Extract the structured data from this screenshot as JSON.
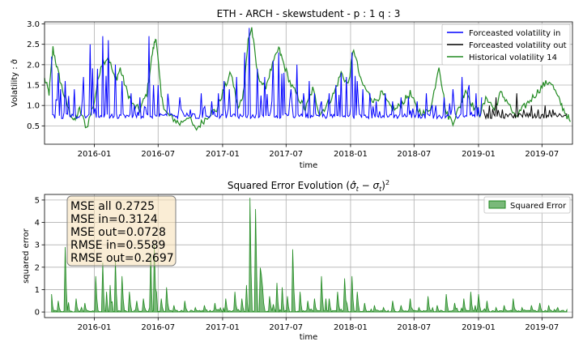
{
  "chart_data": [
    {
      "type": "line",
      "title": "ETH - ARCH - skewstudent - p : 1 q : 3",
      "xlabel": "time",
      "ylabel": "Volatility : σ̂",
      "x_range": [
        "2015-08-12",
        "2019-09-26"
      ],
      "ylim": [
        0.05,
        3.05
      ],
      "x_ticks": [
        "2016-01",
        "2016-07",
        "2017-01",
        "2017-07",
        "2018-01",
        "2018-07",
        "2019-01",
        "2019-07"
      ],
      "y_ticks": [
        "0.5",
        "1.0",
        "1.5",
        "2.0",
        "2.5",
        "3.0"
      ],
      "grid": true,
      "legend_position": "top-right",
      "series": [
        {
          "name": "Forceasted volatility in",
          "color": "#0000ff",
          "baseline": 0.72,
          "x": [
            "2015-09-01",
            "2015-09-20",
            "2015-10-10",
            "2015-11-05",
            "2015-12-01",
            "2015-12-20",
            "2016-01-10",
            "2016-01-25",
            "2016-02-10",
            "2016-03-01",
            "2016-03-20",
            "2016-04-15",
            "2016-05-10",
            "2016-06-05",
            "2016-06-18",
            "2016-07-01",
            "2016-08-01",
            "2016-09-01",
            "2016-10-01",
            "2016-11-01",
            "2016-12-01",
            "2016-12-20",
            "2017-01-05",
            "2017-01-20",
            "2017-02-10",
            "2017-03-05",
            "2017-03-18",
            "2017-04-10",
            "2017-05-01",
            "2017-05-25",
            "2017-06-10",
            "2017-06-25",
            "2017-07-15",
            "2017-08-01",
            "2017-08-20",
            "2017-09-05",
            "2017-09-20",
            "2017-10-10",
            "2017-11-01",
            "2017-11-20",
            "2017-12-05",
            "2017-12-20",
            "2018-01-05",
            "2018-01-20",
            "2018-02-05",
            "2018-02-25",
            "2018-03-15",
            "2018-04-10",
            "2018-05-01",
            "2018-05-25",
            "2018-06-15",
            "2018-07-10",
            "2018-08-05",
            "2018-09-01",
            "2018-09-25",
            "2018-10-20",
            "2018-11-15",
            "2018-12-05",
            "2018-12-25",
            "2019-01-10"
          ],
          "peaks": [
            2.2,
            1.8,
            1.6,
            1.4,
            1.7,
            2.5,
            1.9,
            2.7,
            2.6,
            2.0,
            1.6,
            1.3,
            1.2,
            2.7,
            1.5,
            1.5,
            1.0,
            1.2,
            0.9,
            1.3,
            1.1,
            1.3,
            1.6,
            1.4,
            1.7,
            2.3,
            2.9,
            1.9,
            1.7,
            2.1,
            2.3,
            1.8,
            1.4,
            2.0,
            1.3,
            1.6,
            1.3,
            1.1,
            1.3,
            1.5,
            1.8,
            1.7,
            2.3,
            1.6,
            1.4,
            1.3,
            1.1,
            1.3,
            1.1,
            1.2,
            1.2,
            1.1,
            1.3,
            1.0,
            1.2,
            1.4,
            1.7,
            1.5,
            1.3,
            1.2
          ]
        },
        {
          "name": "Forceasted volatility out",
          "color": "#000000",
          "baseline": 0.72,
          "x": [
            "2019-01-15",
            "2019-02-01",
            "2019-02-20",
            "2019-03-10",
            "2019-04-01",
            "2019-04-20",
            "2019-05-10",
            "2019-06-01",
            "2019-06-20",
            "2019-07-10",
            "2019-08-01",
            "2019-08-20",
            "2019-09-10"
          ],
          "peaks": [
            0.9,
            1.0,
            1.2,
            0.9,
            0.8,
            1.3,
            0.9,
            1.0,
            0.9,
            1.0,
            0.9,
            0.8,
            0.8
          ]
        },
        {
          "name": "Historical volatility 14",
          "color": "#228b22",
          "x": [
            "2015-08-12",
            "2015-08-25",
            "2015-09-05",
            "2015-09-20",
            "2015-10-05",
            "2015-10-20",
            "2015-11-05",
            "2015-11-20",
            "2015-12-10",
            "2016-01-01",
            "2016-01-20",
            "2016-02-10",
            "2016-03-01",
            "2016-03-15",
            "2016-04-01",
            "2016-04-20",
            "2016-05-10",
            "2016-05-30",
            "2016-06-15",
            "2016-06-25",
            "2016-07-10",
            "2016-07-25",
            "2016-08-10",
            "2016-09-01",
            "2016-09-25",
            "2016-10-15",
            "2016-11-05",
            "2016-11-25",
            "2016-12-15",
            "2017-01-05",
            "2017-01-25",
            "2017-02-15",
            "2017-03-01",
            "2017-03-15",
            "2017-03-25",
            "2017-04-10",
            "2017-05-01",
            "2017-05-20",
            "2017-06-10",
            "2017-06-25",
            "2017-07-15",
            "2017-08-05",
            "2017-08-25",
            "2017-09-15",
            "2017-10-05",
            "2017-10-25",
            "2017-11-15",
            "2017-12-05",
            "2017-12-25",
            "2018-01-10",
            "2018-01-30",
            "2018-02-20",
            "2018-03-10",
            "2018-04-01",
            "2018-04-20",
            "2018-05-10",
            "2018-06-01",
            "2018-06-20",
            "2018-07-10",
            "2018-08-01",
            "2018-08-20",
            "2018-09-10",
            "2018-10-01",
            "2018-10-20",
            "2018-11-10",
            "2018-11-25",
            "2018-12-15",
            "2019-01-05",
            "2019-01-25",
            "2019-02-15",
            "2019-03-05",
            "2019-03-25",
            "2019-04-15",
            "2019-05-05",
            "2019-05-25",
            "2019-06-15",
            "2019-07-05",
            "2019-07-25",
            "2019-08-15",
            "2019-09-01",
            "2019-09-20"
          ],
          "values": [
            1.65,
            1.3,
            2.4,
            1.8,
            1.3,
            0.9,
            0.6,
            0.9,
            0.45,
            1.1,
            2.0,
            2.2,
            1.6,
            1.9,
            1.4,
            1.0,
            0.9,
            1.3,
            2.3,
            2.7,
            1.2,
            0.8,
            0.7,
            0.55,
            0.75,
            0.4,
            0.6,
            0.8,
            0.9,
            1.4,
            1.8,
            0.9,
            1.3,
            2.6,
            2.9,
            1.8,
            1.4,
            1.9,
            2.4,
            2.0,
            1.5,
            1.2,
            0.9,
            1.4,
            0.8,
            1.0,
            1.3,
            1.8,
            1.5,
            2.4,
            1.6,
            1.3,
            1.1,
            1.3,
            1.0,
            0.9,
            1.1,
            1.3,
            0.9,
            0.8,
            1.0,
            2.0,
            0.8,
            0.6,
            1.0,
            1.4,
            1.0,
            0.8,
            1.2,
            0.9,
            1.3,
            1.1,
            0.7,
            0.9,
            1.1,
            1.3,
            1.5,
            1.6,
            1.2,
            0.9,
            0.6
          ]
        }
      ]
    },
    {
      "type": "area",
      "title": "Squared Error Evolution (σ̂t − σt)²",
      "xlabel": "time",
      "ylabel": "squared error",
      "x_range": [
        "2015-08-12",
        "2019-09-26"
      ],
      "ylim": [
        -0.25,
        5.25
      ],
      "x_ticks": [
        "2016-01",
        "2016-07",
        "2017-01",
        "2017-07",
        "2018-01",
        "2018-07",
        "2019-01",
        "2019-07"
      ],
      "y_ticks": [
        "0",
        "1",
        "2",
        "3",
        "4",
        "5"
      ],
      "grid": true,
      "legend_position": "top-right",
      "series": [
        {
          "name": "Squared Error",
          "color": "#228b22",
          "x": [
            "2015-09-01",
            "2015-09-20",
            "2015-10-10",
            "2015-11-10",
            "2015-12-05",
            "2016-01-05",
            "2016-01-25",
            "2016-02-05",
            "2016-02-15",
            "2016-03-01",
            "2016-03-20",
            "2016-04-10",
            "2016-05-01",
            "2016-05-20",
            "2016-06-10",
            "2016-06-20",
            "2016-07-10",
            "2016-07-25",
            "2016-08-15",
            "2016-09-15",
            "2016-10-15",
            "2016-11-10",
            "2016-12-10",
            "2017-01-10",
            "2017-02-05",
            "2017-02-25",
            "2017-03-10",
            "2017-03-20",
            "2017-04-05",
            "2017-04-25",
            "2017-05-15",
            "2017-06-05",
            "2017-06-20",
            "2017-07-05",
            "2017-07-20",
            "2017-08-10",
            "2017-09-01",
            "2017-09-20",
            "2017-10-10",
            "2017-11-01",
            "2017-11-25",
            "2017-12-15",
            "2018-01-05",
            "2018-01-20",
            "2018-02-10",
            "2018-03-10",
            "2018-04-05",
            "2018-05-01",
            "2018-05-25",
            "2018-06-20",
            "2018-07-15",
            "2018-08-10",
            "2018-09-05",
            "2018-10-01",
            "2018-10-25",
            "2018-11-20",
            "2018-12-10",
            "2019-01-01",
            "2019-01-25",
            "2019-02-20",
            "2019-03-15",
            "2019-04-10",
            "2019-05-05",
            "2019-06-01",
            "2019-06-25",
            "2019-07-20",
            "2019-08-15",
            "2019-09-10"
          ],
          "peaks": [
            0.8,
            0.5,
            2.9,
            0.6,
            0.4,
            1.6,
            2.2,
            0.9,
            1.2,
            2.3,
            1.6,
            0.9,
            0.5,
            0.6,
            2.6,
            3.0,
            0.6,
            1.1,
            0.3,
            0.5,
            0.2,
            0.3,
            0.4,
            0.6,
            0.9,
            0.6,
            1.2,
            5.1,
            4.6,
            1.1,
            0.7,
            1.3,
            1.1,
            0.7,
            2.8,
            0.9,
            0.5,
            0.6,
            1.6,
            0.6,
            0.9,
            1.5,
            1.6,
            0.9,
            0.4,
            0.3,
            0.2,
            0.5,
            0.3,
            0.6,
            0.2,
            0.7,
            0.3,
            0.8,
            0.4,
            0.6,
            0.9,
            0.8,
            0.5,
            0.2,
            0.3,
            0.6,
            0.2,
            0.3,
            0.4,
            0.3,
            0.2,
            0.1
          ]
        }
      ],
      "annotations": [
        "MSE all 0.2725",
        "MSE in=0.3124",
        "MSE out=0.0728",
        "RMSE in=0.5589",
        "RMSE out=0.2697"
      ]
    }
  ]
}
